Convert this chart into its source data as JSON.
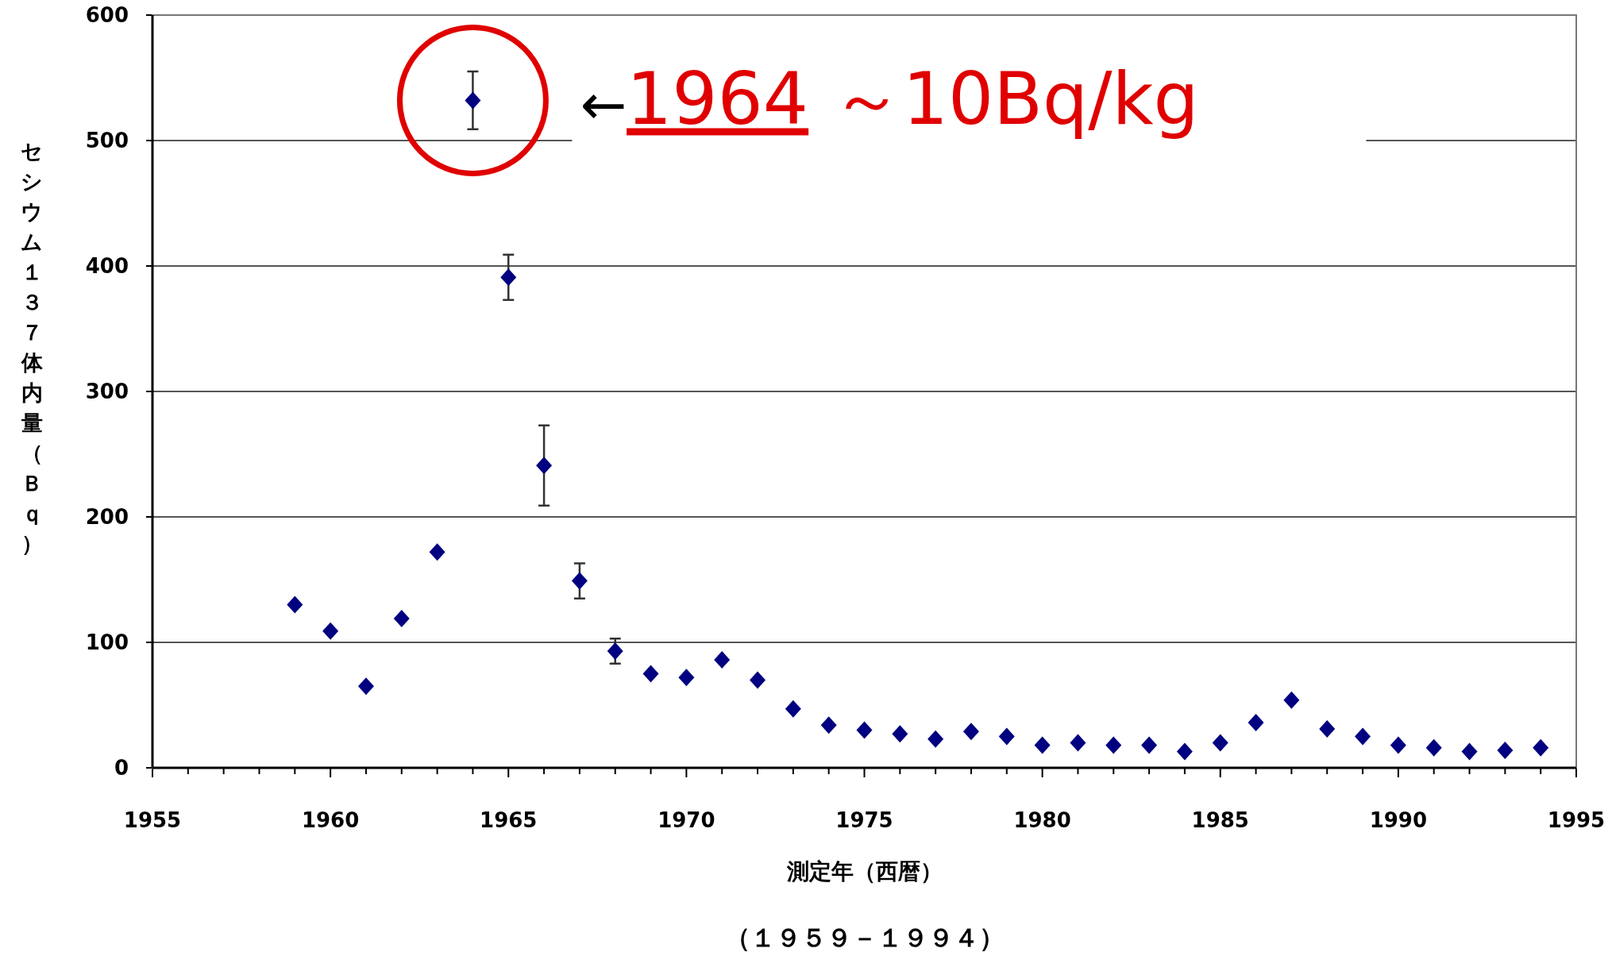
{
  "chart_data": {
    "type": "scatter",
    "subtitle": "（１９５９－１９９４）",
    "xlabel": "測定年（西暦）",
    "ylabel": "セシウム１３７体内量（Ｂｑ）",
    "x": [
      1959,
      1960,
      1961,
      1962,
      1963,
      1964,
      1965,
      1966,
      1967,
      1968,
      1969,
      1970,
      1971,
      1972,
      1973,
      1974,
      1975,
      1976,
      1977,
      1978,
      1979,
      1980,
      1981,
      1982,
      1983,
      1984,
      1985,
      1986,
      1987,
      1988,
      1989,
      1990,
      1991,
      1992,
      1993,
      1994
    ],
    "series": [
      {
        "color": "#000080",
        "marker": "diamond",
        "values": [
          130,
          109,
          65,
          119,
          172,
          532,
          391,
          241,
          149,
          93,
          75,
          72,
          86,
          70,
          47,
          34,
          30,
          27,
          23,
          29,
          25,
          18,
          20,
          18,
          18,
          13,
          20,
          36,
          54,
          31,
          25,
          18,
          16,
          13,
          14,
          16
        ],
        "errors": [
          null,
          null,
          null,
          null,
          null,
          23,
          18,
          32,
          14,
          10,
          null,
          null,
          null,
          null,
          null,
          null,
          null,
          null,
          null,
          null,
          null,
          null,
          null,
          null,
          null,
          null,
          null,
          null,
          null,
          null,
          null,
          null,
          null,
          null,
          null,
          null
        ]
      }
    ],
    "xlim": [
      1955,
      1995
    ],
    "xticks": [
      1955,
      {
        "value": 1956,
        "label": null
      },
      {
        "value": 1957,
        "label": null
      },
      {
        "value": 1958,
        "label": null
      },
      {
        "value": 1959,
        "label": null
      },
      1960,
      {
        "value": 1961,
        "label": null
      },
      {
        "value": 1962,
        "label": null
      },
      {
        "value": 1963,
        "label": null
      },
      {
        "value": 1964,
        "label": null
      },
      1965,
      {
        "value": 1966,
        "label": null
      },
      {
        "value": 1967,
        "label": null
      },
      {
        "value": 1968,
        "label": null
      },
      {
        "value": 1969,
        "label": null
      },
      1970,
      {
        "value": 1971,
        "label": null
      },
      {
        "value": 1972,
        "label": null
      },
      {
        "value": 1973,
        "label": null
      },
      {
        "value": 1974,
        "label": null
      },
      1975,
      {
        "value": 1976,
        "label": null
      },
      {
        "value": 1977,
        "label": null
      },
      {
        "value": 1978,
        "label": null
      },
      {
        "value": 1979,
        "label": null
      },
      1980,
      {
        "value": 1981,
        "label": null
      },
      {
        "value": 1982,
        "label": null
      },
      {
        "value": 1983,
        "label": null
      },
      {
        "value": 1984,
        "label": null
      },
      1985,
      {
        "value": 1986,
        "label": null
      },
      {
        "value": 1987,
        "label": null
      },
      {
        "value": 1988,
        "label": null
      },
      {
        "value": 1989,
        "label": null
      },
      1990,
      {
        "value": 1991,
        "label": null
      },
      {
        "value": 1992,
        "label": null
      },
      {
        "value": 1993,
        "label": null
      },
      {
        "value": 1994,
        "label": null
      },
      1995
    ],
    "ylim": [
      0,
      600
    ],
    "yticks": [
      0,
      100,
      200,
      300,
      400,
      500,
      600
    ],
    "grid": "y",
    "annotations": [
      {
        "text": "←1964 ～10Bq/kg",
        "x": 1964,
        "y": 532
      }
    ]
  }
}
